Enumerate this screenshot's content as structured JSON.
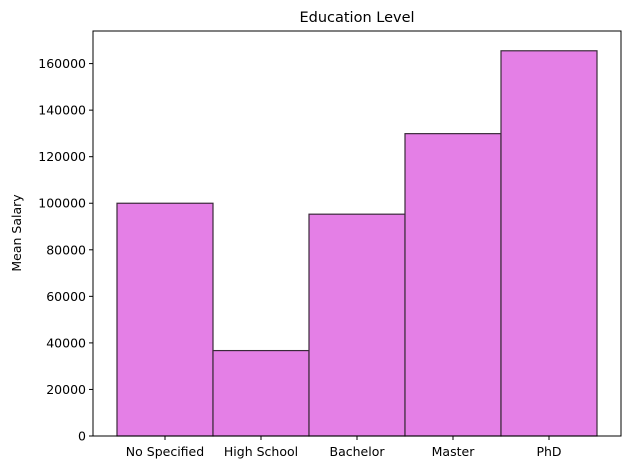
{
  "chart_data": {
    "type": "bar",
    "title": "Education Level",
    "xlabel": "",
    "ylabel": "Mean Salary",
    "categories": [
      "No Specified",
      "High School",
      "Bachelor",
      "Master",
      "PhD"
    ],
    "values": [
      100000,
      36700,
      95300,
      129900,
      165500
    ],
    "ylim": [
      0,
      174000
    ],
    "yticks": [
      0,
      20000,
      40000,
      60000,
      80000,
      100000,
      120000,
      140000,
      160000
    ],
    "ytick_labels": [
      "0",
      "20000",
      "40000",
      "60000",
      "80000",
      "100000",
      "120000",
      "140000",
      "160000"
    ],
    "grid": false,
    "legend": "none",
    "bar_color": "#e47fe6",
    "bar_edge_color": "#3a2a3a"
  }
}
